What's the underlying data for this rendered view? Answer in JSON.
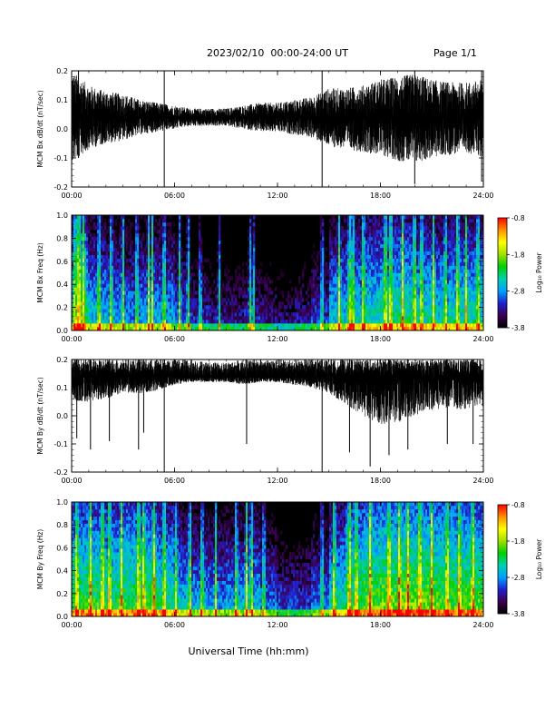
{
  "header": {
    "title": "2023/02/10  00:00-24:00 UT",
    "page": "Page 1/1"
  },
  "xlabel": "Universal Time (hh:mm)",
  "colors": {
    "trace": "#000000",
    "spectrogram_background": "#000000",
    "colorbar_stops": [
      "#000000",
      "#3c0050",
      "#2020d0",
      "#00a0ff",
      "#00d0b0",
      "#00d000",
      "#a0e000",
      "#ffff00",
      "#ff9000",
      "#ff0000"
    ]
  },
  "chart_data": [
    {
      "type": "line",
      "panel": "bx-derivative",
      "ylabel": "MCM Bx dB/dt (nT/sec)",
      "xlim": [
        0,
        24
      ],
      "ylim": [
        -0.2,
        0.2
      ],
      "x_tick_labels": [
        "00:00",
        "06:00",
        "12:00",
        "18:00",
        "24:00"
      ],
      "y_tick_labels": [
        "-0.2",
        "-0.1",
        "0.0",
        "0.1",
        "0.2"
      ],
      "y_ticks": [
        -0.2,
        -0.1,
        0.0,
        0.1,
        0.2
      ],
      "series": [
        {
          "mean": 0.04,
          "x": [
            0,
            1,
            2,
            3,
            4,
            5,
            6,
            7,
            8,
            9,
            10,
            11,
            12,
            13,
            14,
            15,
            16,
            17,
            18,
            19,
            20,
            21,
            22,
            23,
            24
          ],
          "upper": [
            0.2,
            0.15,
            0.13,
            0.12,
            0.1,
            0.09,
            0.08,
            0.07,
            0.07,
            0.07,
            0.08,
            0.09,
            0.09,
            0.1,
            0.11,
            0.14,
            0.14,
            0.15,
            0.17,
            0.18,
            0.19,
            0.17,
            0.16,
            0.16,
            0.17
          ],
          "lower": [
            -0.12,
            -0.07,
            -0.05,
            -0.04,
            -0.02,
            -0.01,
            0.0,
            0.01,
            0.01,
            0.01,
            0.0,
            -0.01,
            -0.01,
            -0.02,
            -0.03,
            -0.06,
            -0.07,
            -0.08,
            -0.09,
            -0.11,
            -0.12,
            -0.1,
            -0.09,
            -0.08,
            -0.1
          ]
        }
      ],
      "spikes": [
        {
          "x": 5.4,
          "from": -0.2,
          "to": 0.2
        },
        {
          "x": 14.6,
          "from": -0.2,
          "to": 0.2
        },
        {
          "x": 20.0,
          "from": -0.19,
          "to": 0.2
        },
        {
          "x": 23.9,
          "from": -0.18,
          "to": 0.2
        },
        {
          "x": 0.4,
          "from": -0.1,
          "to": 0.2
        }
      ]
    },
    {
      "type": "heatmap",
      "panel": "bx-spectrogram",
      "ylabel": "MCM Bx Freq (Hz)",
      "xlim": [
        0,
        24
      ],
      "ylim": [
        0,
        1.0
      ],
      "x_tick_labels": [
        "00:00",
        "06:00",
        "12:00",
        "18:00",
        "24:00"
      ],
      "y_tick_labels": [
        "0.0",
        "0.2",
        "0.4",
        "0.6",
        "0.8",
        "1.0"
      ],
      "y_ticks": [
        0.0,
        0.2,
        0.4,
        0.6,
        0.8,
        1.0
      ],
      "colorbar": {
        "label": "Log₁₀ Power",
        "range": [
          -3.8,
          -0.8
        ],
        "ticks": [
          -3.8,
          -2.8,
          -1.8,
          -0.8
        ],
        "tick_labels": [
          "-3.8",
          "-2.8",
          "-1.8",
          "-0.8"
        ]
      },
      "hourly_level": [
        -2.2,
        -2.5,
        -2.6,
        -2.7,
        -2.6,
        -2.6,
        -2.9,
        -3.1,
        -3.2,
        -3.2,
        -3.1,
        -3.2,
        -3.3,
        -3.2,
        -3.0,
        -2.5,
        -2.4,
        -2.3,
        -2.2,
        -2.2,
        -2.3,
        -2.4,
        -2.3,
        -2.3
      ],
      "bursts": [
        0.2,
        0.35,
        0.5,
        0.7,
        1.6,
        2.3,
        3.0,
        3.8,
        4.5,
        4.7,
        5.4,
        6.3,
        6.8,
        7.5,
        8.6,
        10.4,
        10.6,
        14.6,
        15.6,
        16.2,
        16.4,
        17.0,
        18.3,
        18.6,
        19.3,
        20.0,
        20.4,
        21.1,
        21.8,
        22.5,
        23.0,
        23.7
      ]
    },
    {
      "type": "line",
      "panel": "by-derivative",
      "ylabel": "MCM By dB/dt (nT/sec)",
      "xlim": [
        0,
        24
      ],
      "ylim": [
        -0.2,
        0.2
      ],
      "x_tick_labels": [
        "00:00",
        "06:00",
        "12:00",
        "18:00",
        "24:00"
      ],
      "y_tick_labels": [
        "-0.2",
        "-0.1",
        "0.0",
        "0.1",
        "0.2"
      ],
      "y_ticks": [
        -0.2,
        -0.1,
        0.0,
        0.1,
        0.2
      ],
      "series": [
        {
          "mean": 0.14,
          "x": [
            0,
            1,
            2,
            3,
            4,
            5,
            6,
            7,
            8,
            9,
            10,
            11,
            12,
            13,
            14,
            15,
            16,
            17,
            18,
            19,
            20,
            21,
            22,
            23,
            24
          ],
          "upper": [
            0.2,
            0.2,
            0.2,
            0.2,
            0.2,
            0.2,
            0.2,
            0.2,
            0.19,
            0.19,
            0.2,
            0.2,
            0.2,
            0.2,
            0.2,
            0.2,
            0.2,
            0.2,
            0.2,
            0.2,
            0.2,
            0.2,
            0.2,
            0.2,
            0.2
          ],
          "lower": [
            0.05,
            0.05,
            0.06,
            0.08,
            0.08,
            0.09,
            0.11,
            0.12,
            0.12,
            0.12,
            0.11,
            0.12,
            0.12,
            0.11,
            0.1,
            0.08,
            0.04,
            0.0,
            -0.03,
            -0.03,
            0.0,
            0.02,
            0.03,
            0.02,
            0.03
          ]
        }
      ],
      "spikes": [
        {
          "x": 0.3,
          "from": -0.08,
          "to": 0.2
        },
        {
          "x": 1.1,
          "from": -0.12,
          "to": 0.2
        },
        {
          "x": 2.2,
          "from": -0.09,
          "to": 0.2
        },
        {
          "x": 3.9,
          "from": -0.12,
          "to": 0.2
        },
        {
          "x": 4.2,
          "from": -0.06,
          "to": 0.2
        },
        {
          "x": 5.4,
          "from": -0.2,
          "to": 0.2
        },
        {
          "x": 10.2,
          "from": -0.1,
          "to": 0.2
        },
        {
          "x": 14.6,
          "from": -0.2,
          "to": 0.2
        },
        {
          "x": 16.2,
          "from": -0.13,
          "to": 0.2
        },
        {
          "x": 17.4,
          "from": -0.18,
          "to": 0.2
        },
        {
          "x": 18.5,
          "from": -0.14,
          "to": 0.2
        },
        {
          "x": 19.6,
          "from": -0.12,
          "to": 0.2
        },
        {
          "x": 21.9,
          "from": -0.1,
          "to": 0.2
        },
        {
          "x": 23.4,
          "from": -0.1,
          "to": 0.2
        }
      ]
    },
    {
      "type": "heatmap",
      "panel": "by-spectrogram",
      "ylabel": "MCM By Freq (Hz)",
      "xlim": [
        0,
        24
      ],
      "ylim": [
        0,
        1.0
      ],
      "x_tick_labels": [
        "00:00",
        "06:00",
        "12:00",
        "18:00",
        "24:00"
      ],
      "y_tick_labels": [
        "0.0",
        "0.2",
        "0.4",
        "0.6",
        "0.8",
        "1.0"
      ],
      "y_ticks": [
        0.0,
        0.2,
        0.4,
        0.6,
        0.8,
        1.0
      ],
      "colorbar": {
        "label": "Log₁₀ Power",
        "range": [
          -3.8,
          -0.8
        ],
        "ticks": [
          -3.8,
          -2.8,
          -1.8,
          -0.8
        ],
        "tick_labels": [
          "-3.8",
          "-2.8",
          "-1.8",
          "-0.8"
        ]
      },
      "hourly_level": [
        -2.0,
        -2.0,
        -2.1,
        -2.0,
        -2.0,
        -2.2,
        -2.5,
        -2.6,
        -2.7,
        -2.6,
        -2.5,
        -2.8,
        -3.0,
        -3.0,
        -2.8,
        -2.3,
        -2.0,
        -1.9,
        -1.8,
        -1.8,
        -1.8,
        -1.9,
        -1.9,
        -1.9
      ],
      "bursts": [
        0.3,
        1.1,
        1.8,
        2.2,
        2.9,
        3.9,
        4.2,
        4.8,
        5.4,
        6.1,
        6.9,
        7.6,
        8.4,
        9.6,
        10.2,
        10.5,
        11.2,
        14.6,
        15.3,
        16.2,
        16.6,
        17.4,
        18.5,
        19.1,
        19.6,
        20.3,
        21.0,
        21.9,
        22.6,
        23.4
      ]
    }
  ]
}
